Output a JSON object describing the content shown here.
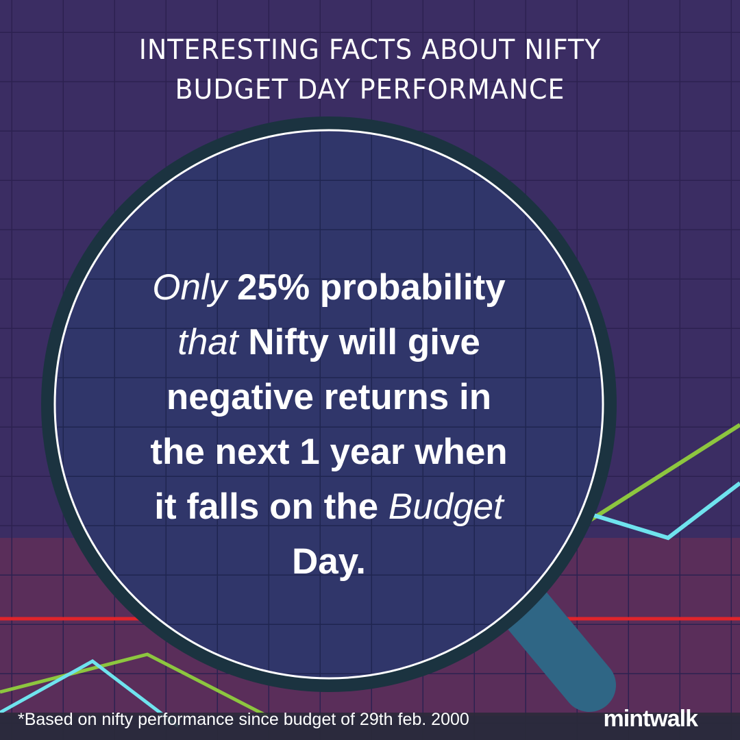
{
  "header": {
    "title_lines": [
      "INTERESTING FACTS ABOUT NIFTY",
      "BUDGET DAY PERFORMANCE"
    ]
  },
  "body": {
    "lines": [
      [
        {
          "text": "Only",
          "italic": true
        },
        {
          "text": " 25% probability",
          "italic": false
        }
      ],
      [
        {
          "text": "that",
          "italic": true
        },
        {
          "text": " Nifty will give",
          "italic": false
        }
      ],
      [
        {
          "text": "negative returns in",
          "italic": false
        }
      ],
      [
        {
          "text": "the next 1 year when",
          "italic": false
        }
      ],
      [
        {
          "text": "it falls on the ",
          "italic": false
        },
        {
          "text": "Budget",
          "italic": true
        }
      ],
      [
        {
          "text": "Day.",
          "italic": false
        }
      ]
    ]
  },
  "footer": {
    "note": "*Based on nifty performance since budget of 29th feb. 2000",
    "logo": "mintwalk"
  }
}
